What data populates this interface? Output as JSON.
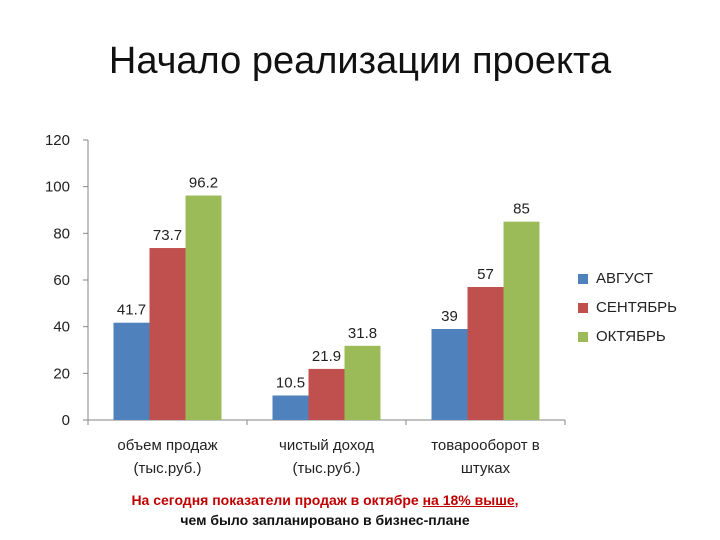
{
  "title": "Начало реализации проекта",
  "chart_data": {
    "type": "bar",
    "categories": [
      [
        "объем продаж",
        "(тыс.руб.)"
      ],
      [
        "чистый доход",
        "(тыс.руб.)"
      ],
      [
        "товарооборот в",
        "штуках"
      ]
    ],
    "series": [
      {
        "name": "АВГУСТ",
        "color": "#4f81bd",
        "values": [
          41.7,
          10.5,
          39
        ]
      },
      {
        "name": "СЕНТЯБРЬ",
        "color": "#c0504d",
        "values": [
          73.7,
          21.9,
          57
        ]
      },
      {
        "name": "ОКТЯБРЬ",
        "color": "#9bbb59",
        "values": [
          96.2,
          31.8,
          85
        ]
      }
    ],
    "data_labels": [
      [
        "41.7",
        "10.5",
        "39"
      ],
      [
        "73.7",
        "21.9",
        "57"
      ],
      [
        "96.2",
        "31.8",
        "85"
      ]
    ],
    "yticks": [
      "0",
      "20",
      "40",
      "60",
      "80",
      "100",
      "120"
    ],
    "ylim": [
      0,
      120
    ],
    "grid": false,
    "legend": "right"
  },
  "note": {
    "line1_pre": "На сегодня показатели продаж в октябре ",
    "line1_highlight": "на 18% выше,",
    "line2": "чем было запланировано в бизнес-плане"
  }
}
